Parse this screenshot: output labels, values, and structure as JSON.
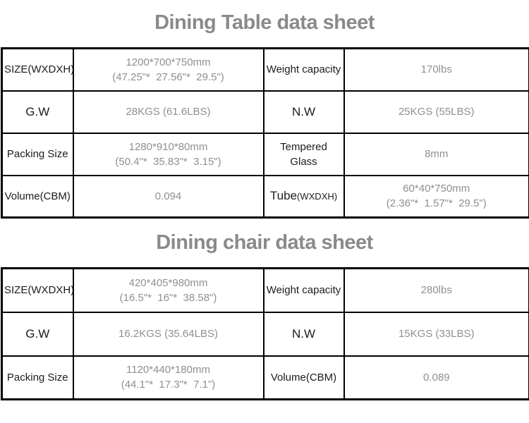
{
  "colors": {
    "border": "#000000",
    "label_text": "#1c1c1c",
    "value_text": "#8f8f8f",
    "title_text": "#8a8a8a"
  },
  "tables": [
    {
      "title": "Dining Table data sheet",
      "rows": [
        {
          "c0": "SIZE(WXDXH)",
          "c1a": "1200*700*750mm",
          "c1b": "(47.25\"*  27.56\"*  29.5\")",
          "c2": "Weight capacity",
          "c3a": "170lbs",
          "c3b": ""
        },
        {
          "c0": "G.W",
          "c1a": "28KGS (61.6LBS)",
          "c1b": "",
          "c2": "N.W",
          "c3a": "25KGS (55LBS)",
          "c3b": ""
        },
        {
          "c0": "Packing Size",
          "c1a": "1280*910*80mm",
          "c1b": "(50.4\"*  35.83\"*  3.15\")",
          "c2": "Tempered Glass",
          "c3a": "8mm",
          "c3b": ""
        },
        {
          "c0": "Volume(CBM)",
          "c1a": "0.094",
          "c1b": "",
          "c2": "Tube",
          "c2sub": "(WXDXH)",
          "c3a": "60*40*750mm",
          "c3b": "(2.36\"*  1.57\"*  29.5\")"
        }
      ]
    },
    {
      "title": "Dining chair data sheet",
      "rows": [
        {
          "c0": "SIZE(WXDXH)",
          "c1a": "420*405*980mm",
          "c1b": "(16.5\"*  16\"*  38.58\")",
          "c2": "Weight capacity",
          "c3a": "280lbs",
          "c3b": ""
        },
        {
          "c0": "G.W",
          "c1a": "16.2KGS (35.64LBS)",
          "c1b": "",
          "c2": "N.W",
          "c3a": "15KGS (33LBS)",
          "c3b": ""
        },
        {
          "c0": "Packing Size",
          "c1a": "1120*440*180mm",
          "c1b": "(44.1\"*  17.3\"*  7.1\")",
          "c2": "Volume(CBM)",
          "c3a": "0.089",
          "c3b": ""
        }
      ]
    }
  ]
}
